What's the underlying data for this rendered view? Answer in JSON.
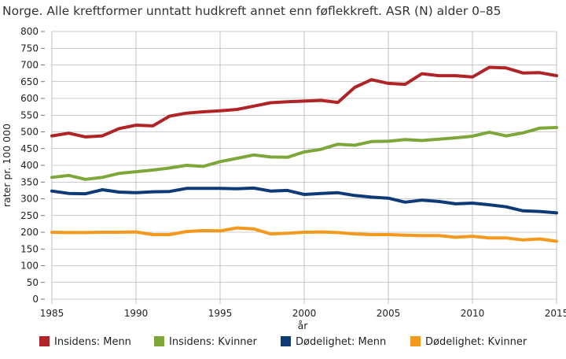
{
  "chart_data": {
    "type": "line",
    "title": "Norge. Alle kreftformer unntatt hudkreft annet enn føflekkreft. ASR (N) alder 0–85",
    "xlabel": "år",
    "ylabel": "rater pr. 100 000",
    "xlim": [
      1985,
      2015
    ],
    "ylim": [
      0,
      800
    ],
    "x_ticks": [
      1985,
      1990,
      1995,
      2000,
      2005,
      2010,
      2015
    ],
    "y_ticks": [
      0,
      50,
      100,
      150,
      200,
      250,
      300,
      350,
      400,
      450,
      500,
      550,
      600,
      650,
      700,
      750,
      800
    ],
    "grid": true,
    "legend_position": "bottom",
    "x": [
      1985,
      1986,
      1987,
      1988,
      1989,
      1990,
      1991,
      1992,
      1993,
      1994,
      1995,
      1996,
      1997,
      1998,
      1999,
      2000,
      2001,
      2002,
      2003,
      2004,
      2005,
      2006,
      2007,
      2008,
      2009,
      2010,
      2011,
      2012,
      2013,
      2014,
      2015
    ],
    "series": [
      {
        "name": "Insidens: Menn",
        "color": "#b02428",
        "values": [
          488,
          496,
          485,
          488,
          510,
          520,
          518,
          547,
          556,
          560,
          563,
          567,
          577,
          587,
          590,
          592,
          594,
          588,
          633,
          656,
          645,
          642,
          674,
          668,
          668,
          664,
          693,
          691,
          676,
          677,
          668
        ]
      },
      {
        "name": "Insidens: Kvinner",
        "color": "#7ea63b",
        "values": [
          364,
          370,
          358,
          364,
          376,
          381,
          386,
          392,
          400,
          397,
          411,
          421,
          431,
          425,
          424,
          440,
          448,
          463,
          460,
          471,
          472,
          477,
          474,
          478,
          482,
          487,
          499,
          488,
          497,
          511,
          513
        ]
      },
      {
        "name": "Dødelighet: Menn",
        "color": "#0e3a78",
        "values": [
          323,
          316,
          315,
          327,
          320,
          318,
          321,
          322,
          331,
          331,
          331,
          330,
          332,
          323,
          325,
          313,
          316,
          318,
          310,
          305,
          302,
          290,
          296,
          292,
          285,
          287,
          282,
          276,
          264,
          262,
          258
        ]
      },
      {
        "name": "Dødelighet: Kvinner",
        "color": "#f2991e",
        "values": [
          200,
          199,
          199,
          200,
          200,
          201,
          193,
          193,
          202,
          205,
          204,
          213,
          210,
          195,
          197,
          200,
          201,
          199,
          195,
          193,
          193,
          191,
          190,
          190,
          185,
          188,
          183,
          183,
          177,
          180,
          173
        ]
      }
    ]
  }
}
